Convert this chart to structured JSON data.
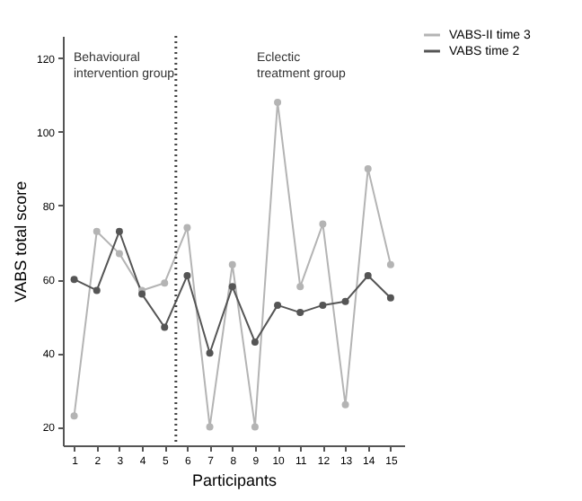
{
  "chart_data": {
    "type": "line",
    "xlabel": "Participants",
    "ylabel": "VABS total score",
    "x": [
      1,
      2,
      3,
      4,
      5,
      6,
      7,
      8,
      9,
      10,
      11,
      12,
      13,
      14,
      15
    ],
    "series": [
      {
        "name": "VABS-II time 3",
        "color": "#b4b4b4",
        "values": [
          23,
          73,
          67,
          57,
          59,
          74,
          20,
          64,
          20,
          108,
          58,
          75,
          26,
          90,
          64
        ]
      },
      {
        "name": "VABS time 2",
        "color": "#555555",
        "values": [
          60,
          57,
          73,
          56,
          47,
          61,
          40,
          58,
          43,
          53,
          51,
          53,
          54,
          61,
          55
        ]
      }
    ],
    "xlim": [
      0.5,
      15.6
    ],
    "xticks": [
      1,
      2,
      3,
      4,
      5,
      6,
      7,
      8,
      9,
      10,
      11,
      12,
      13,
      14,
      15
    ],
    "ylim": [
      15,
      126
    ],
    "yticks": [
      20,
      40,
      60,
      80,
      100,
      120
    ],
    "ref_lines": [
      {
        "axis": "x",
        "value": 5.5,
        "line_style": "dotted",
        "color": "#444444"
      }
    ],
    "annotations": [
      "Behavioural\nintervention group",
      "Eclectic\ntreatment group"
    ],
    "marker": "circle",
    "grid": false,
    "legend": "top right"
  }
}
